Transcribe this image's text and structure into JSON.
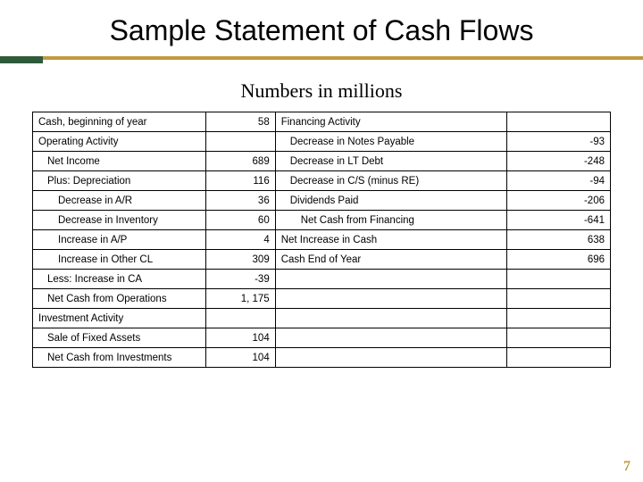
{
  "title": "Sample Statement of Cash Flows",
  "subtitle": "Numbers in millions",
  "page_number": "7",
  "colors": {
    "accent_gold": "#c19a3f",
    "accent_green": "#2f5a3a",
    "border": "#000000",
    "text": "#000000",
    "background": "#ffffff"
  },
  "table": {
    "columns": [
      "label_left",
      "value_left",
      "label_right",
      "value_right"
    ],
    "col_widths_pct": [
      30,
      12,
      40,
      18
    ],
    "font_size_pt": 11.5,
    "rows": [
      {
        "l": "Cash, beginning of year",
        "li": 0,
        "lv": "58",
        "r": "Financing Activity",
        "ri": 0,
        "rv": ""
      },
      {
        "l": "Operating Activity",
        "li": 0,
        "lv": "",
        "r": "Decrease in Notes Payable",
        "ri": 1,
        "rv": "-93"
      },
      {
        "l": "Net Income",
        "li": 1,
        "lv": "689",
        "r": "Decrease in LT Debt",
        "ri": 1,
        "rv": "-248"
      },
      {
        "l": "Plus: Depreciation",
        "li": 1,
        "lv": "116",
        "r": "Decrease in C/S (minus RE)",
        "ri": 1,
        "rv": "-94"
      },
      {
        "l": "Decrease in A/R",
        "li": 2,
        "lv": "36",
        "r": "Dividends Paid",
        "ri": 1,
        "rv": "-206"
      },
      {
        "l": "Decrease in Inventory",
        "li": 2,
        "lv": "60",
        "r": "Net Cash from Financing",
        "ri": 2,
        "rv": "-641"
      },
      {
        "l": "Increase in A/P",
        "li": 2,
        "lv": "4",
        "r": "Net Increase in Cash",
        "ri": 0,
        "rv": "638"
      },
      {
        "l": "Increase in Other CL",
        "li": 2,
        "lv": "309",
        "r": "Cash End of Year",
        "ri": 0,
        "rv": "696"
      },
      {
        "l": "Less: Increase in CA",
        "li": 1,
        "lv": "-39",
        "r": "",
        "ri": 0,
        "rv": ""
      },
      {
        "l": "Net Cash from Operations",
        "li": 1,
        "lv": "1, 175",
        "r": "",
        "ri": 0,
        "rv": ""
      },
      {
        "l": "Investment Activity",
        "li": 0,
        "lv": "",
        "r": "",
        "ri": 0,
        "rv": ""
      },
      {
        "l": "Sale of Fixed Assets",
        "li": 1,
        "lv": "104",
        "r": "",
        "ri": 0,
        "rv": ""
      },
      {
        "l": "Net Cash from Investments",
        "li": 1,
        "lv": "104",
        "r": "",
        "ri": 0,
        "rv": ""
      }
    ]
  }
}
